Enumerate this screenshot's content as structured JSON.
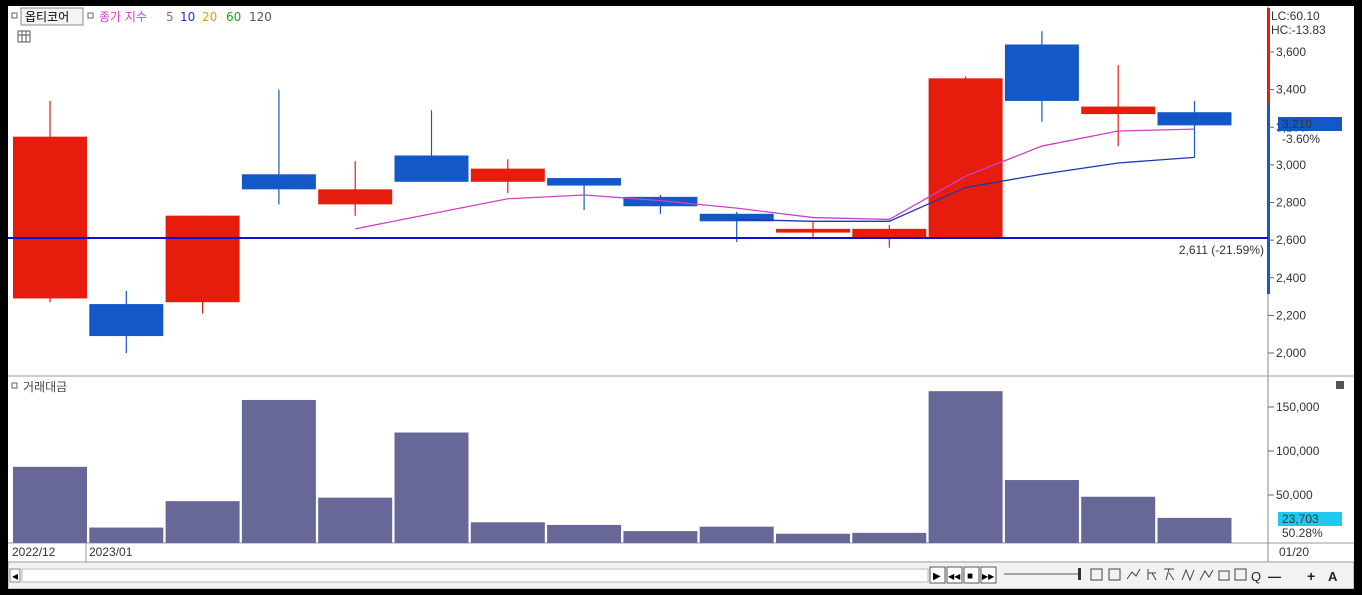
{
  "header": {
    "title": "옵티코어",
    "indicator_label": "종가 지수",
    "ma": [
      {
        "label": "5",
        "color": "#d040c8"
      },
      {
        "label": "10",
        "color": "#1a36b0"
      },
      {
        "label": "20",
        "color": "#e0a000"
      },
      {
        "label": "60",
        "color": "#20a020"
      },
      {
        "label": "120",
        "color": "#555555"
      }
    ]
  },
  "volume_title": "거래대금",
  "right_panel": {
    "lc": "LC:60.10",
    "hc": "HC:-13.83",
    "price_tag": "3,210",
    "price_pct": "-3.60%",
    "vol_tag": "23,703",
    "vol_pct": "50.28%"
  },
  "hline": {
    "value": 2611,
    "label": "2,611 (-21.59%)"
  },
  "x_labels": {
    "left1": "2022/12",
    "left2": "2023/01",
    "right": "01/20"
  },
  "colors": {
    "up": "#e61c0d",
    "down": "#1458c8",
    "volume": "#676898",
    "ma5": "#d040c8",
    "ma10": "#1a36b0",
    "hline": "#1010d0"
  },
  "chart_data": {
    "type": "candlestick",
    "price_axis": {
      "ylim": [
        1900,
        3750
      ],
      "ticks": [
        "3,600",
        "3,400",
        "3,200",
        "3,000",
        "2,800",
        "2,600",
        "2,400",
        "2,200",
        "2,000"
      ],
      "tick_values": [
        3600,
        3400,
        3200,
        3000,
        2800,
        2600,
        2400,
        2200,
        2000
      ]
    },
    "volume_axis": {
      "ylim": [
        0,
        180000
      ],
      "ticks": [
        "150,000",
        "100,000",
        "50,000"
      ],
      "tick_values": [
        150000,
        100000,
        50000
      ]
    },
    "candles": [
      {
        "o": 2290,
        "h": 3340,
        "l": 2270,
        "c": 3150
      },
      {
        "o": 2260,
        "h": 2330,
        "l": 2000,
        "c": 2090
      },
      {
        "o": 2270,
        "h": 2730,
        "l": 2210,
        "c": 2730
      },
      {
        "o": 2950,
        "h": 3400,
        "l": 2790,
        "c": 2870
      },
      {
        "o": 2790,
        "h": 3020,
        "l": 2730,
        "c": 2870
      },
      {
        "o": 3050,
        "h": 3290,
        "l": 2910,
        "c": 2910
      },
      {
        "o": 2910,
        "h": 3030,
        "l": 2850,
        "c": 2980
      },
      {
        "o": 2930,
        "h": 2930,
        "l": 2760,
        "c": 2890
      },
      {
        "o": 2830,
        "h": 2840,
        "l": 2740,
        "c": 2780
      },
      {
        "o": 2740,
        "h": 2750,
        "l": 2590,
        "c": 2700
      },
      {
        "o": 2640,
        "h": 2700,
        "l": 2610,
        "c": 2660
      },
      {
        "o": 2610,
        "h": 2680,
        "l": 2560,
        "c": 2660
      },
      {
        "o": 2610,
        "h": 3470,
        "l": 2610,
        "c": 3460
      },
      {
        "o": 3640,
        "h": 3710,
        "l": 3230,
        "c": 3340
      },
      {
        "o": 3270,
        "h": 3530,
        "l": 3100,
        "c": 3310
      },
      {
        "o": 3280,
        "h": 3340,
        "l": 3040,
        "c": 3210
      }
    ],
    "ma5": [
      null,
      null,
      null,
      null,
      2660,
      2740,
      2820,
      2840,
      2810,
      2770,
      2720,
      2710,
      2940,
      3100,
      3180,
      3190
    ],
    "ma10": [
      null,
      null,
      null,
      null,
      null,
      null,
      null,
      null,
      null,
      2710,
      2700,
      2700,
      2880,
      2950,
      3010,
      3040
    ],
    "volume": [
      82000,
      13000,
      43000,
      158000,
      47000,
      121000,
      19000,
      16000,
      9000,
      14000,
      6000,
      7000,
      168000,
      67000,
      48000,
      24000
    ]
  },
  "bottom_toolbar": {
    "buttons": [
      "▶",
      "◀◀",
      "■",
      "▶▶"
    ],
    "icons": [
      "Q",
      "—",
      "+",
      "A"
    ]
  }
}
